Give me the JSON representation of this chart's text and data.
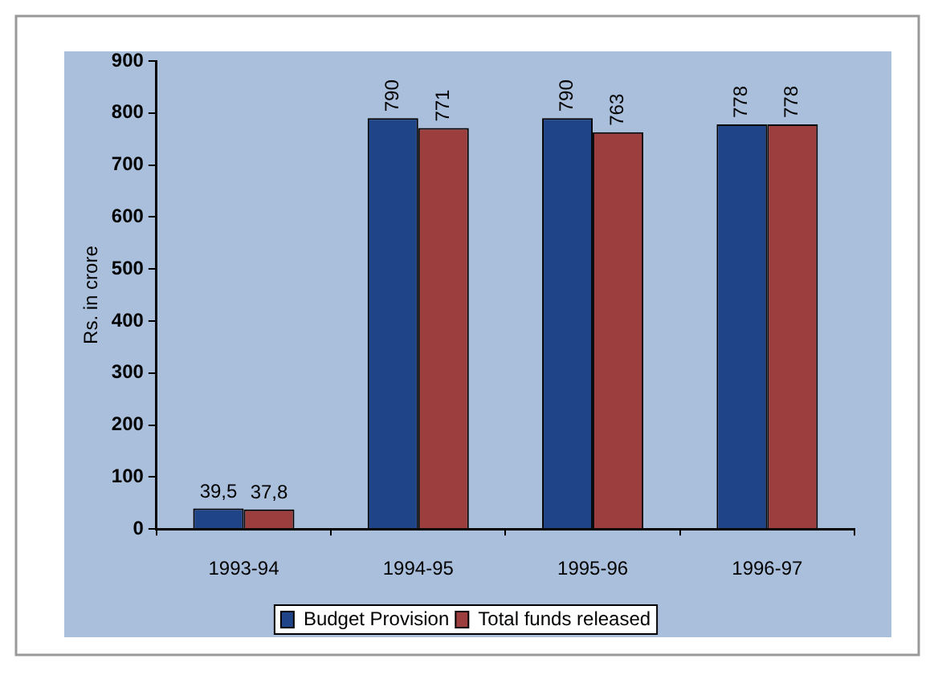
{
  "chart_data": {
    "type": "bar",
    "ylabel": "Rs. in crore",
    "categories": [
      "1993-94",
      "1994-95",
      "1995-96",
      "1996-97"
    ],
    "series": [
      {
        "name": "Budget Provision",
        "color": "#1f4487",
        "values": [
          39.5,
          790,
          790,
          778
        ],
        "value_labels": [
          "39,5",
          "790",
          "790",
          "778"
        ]
      },
      {
        "name": "Total funds released",
        "color": "#9c3e3e",
        "values": [
          37.8,
          771,
          763,
          778
        ],
        "value_labels": [
          "37,8",
          "771",
          "763",
          "778"
        ]
      }
    ],
    "ylim": [
      0,
      900
    ],
    "yticks": [
      0,
      100,
      200,
      300,
      400,
      500,
      600,
      700,
      800,
      900
    ],
    "grid": false,
    "legend": "bottom"
  }
}
